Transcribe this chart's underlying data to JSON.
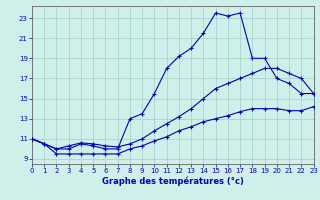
{
  "title": "Graphe des températures (°c)",
  "bg_color": "#cff0ea",
  "grid_color": "#aad8d0",
  "line_color": "#0000bb",
  "xlim": [
    0,
    23
  ],
  "ylim": [
    8.5,
    24.2
  ],
  "xticks": [
    0,
    1,
    2,
    3,
    4,
    5,
    6,
    7,
    8,
    9,
    10,
    11,
    12,
    13,
    14,
    15,
    16,
    17,
    18,
    19,
    20,
    21,
    22,
    23
  ],
  "yticks": [
    9,
    11,
    13,
    15,
    17,
    19,
    21,
    23
  ],
  "series1_x": [
    0,
    1,
    2,
    3,
    4,
    5,
    6,
    7,
    8,
    9,
    10,
    11,
    12,
    13,
    14,
    15,
    16,
    17,
    18,
    19,
    20,
    21,
    22,
    23
  ],
  "series1_y": [
    11.0,
    10.5,
    10.0,
    10.0,
    10.5,
    10.3,
    10.0,
    10.0,
    13.0,
    13.5,
    15.5,
    18.0,
    19.2,
    20.0,
    21.5,
    23.5,
    23.2,
    23.5,
    19.0,
    19.0,
    17.0,
    16.5,
    15.5,
    15.5
  ],
  "series2_x": [
    0,
    1,
    2,
    3,
    4,
    5,
    6,
    7,
    8,
    9,
    10,
    11,
    12,
    13,
    14,
    15,
    16,
    17,
    18,
    19,
    20,
    21,
    22,
    23
  ],
  "series2_y": [
    11.0,
    10.5,
    10.0,
    10.3,
    10.6,
    10.5,
    10.3,
    10.2,
    10.5,
    11.0,
    11.8,
    12.5,
    13.2,
    14.0,
    15.0,
    16.0,
    16.5,
    17.0,
    17.5,
    18.0,
    18.0,
    17.5,
    17.0,
    15.5
  ],
  "series3_x": [
    0,
    1,
    2,
    3,
    4,
    5,
    6,
    7,
    8,
    9,
    10,
    11,
    12,
    13,
    14,
    15,
    16,
    17,
    18,
    19,
    20,
    21,
    22,
    23
  ],
  "series3_y": [
    11.0,
    10.5,
    9.5,
    9.5,
    9.5,
    9.5,
    9.5,
    9.5,
    10.0,
    10.3,
    10.8,
    11.2,
    11.8,
    12.2,
    12.7,
    13.0,
    13.3,
    13.7,
    14.0,
    14.0,
    14.0,
    13.8,
    13.8,
    14.2
  ]
}
